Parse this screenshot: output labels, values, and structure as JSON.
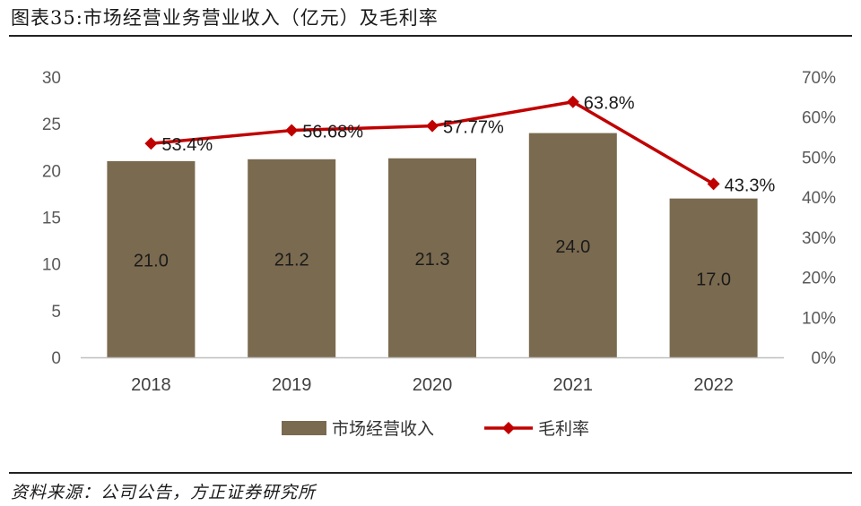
{
  "header": {
    "title": "图表35:市场经营业务营业收入（亿元）及毛利率"
  },
  "footer": {
    "source": "资料来源：公司公告，方正证券研究所"
  },
  "colors": {
    "bar": "#7a6a4f",
    "line": "#c00000",
    "axis": "#bfbfbf"
  },
  "chart_data": {
    "type": "bar",
    "categories": [
      "2018",
      "2019",
      "2020",
      "2021",
      "2022"
    ],
    "series": [
      {
        "name": "市场经营收入",
        "type": "bar",
        "axis": "left",
        "values": [
          21.0,
          21.2,
          21.3,
          24.0,
          17.0
        ],
        "labels": [
          "21.0",
          "21.2",
          "21.3",
          "24.0",
          "17.0"
        ]
      },
      {
        "name": "毛利率",
        "type": "line",
        "axis": "right",
        "values": [
          53.4,
          56.68,
          57.77,
          63.8,
          43.3
        ],
        "labels": [
          "53.4%",
          "56.68%",
          "57.77%",
          "63.8%",
          "43.3%"
        ]
      }
    ],
    "y_left": {
      "min": 0,
      "max": 30,
      "ticks": [
        "0",
        "5",
        "10",
        "15",
        "20",
        "25",
        "30"
      ]
    },
    "y_right": {
      "min": 0,
      "max": 70,
      "ticks": [
        "0%",
        "10%",
        "20%",
        "30%",
        "40%",
        "50%",
        "60%",
        "70%"
      ]
    },
    "grid": false,
    "legend": "bottom"
  }
}
